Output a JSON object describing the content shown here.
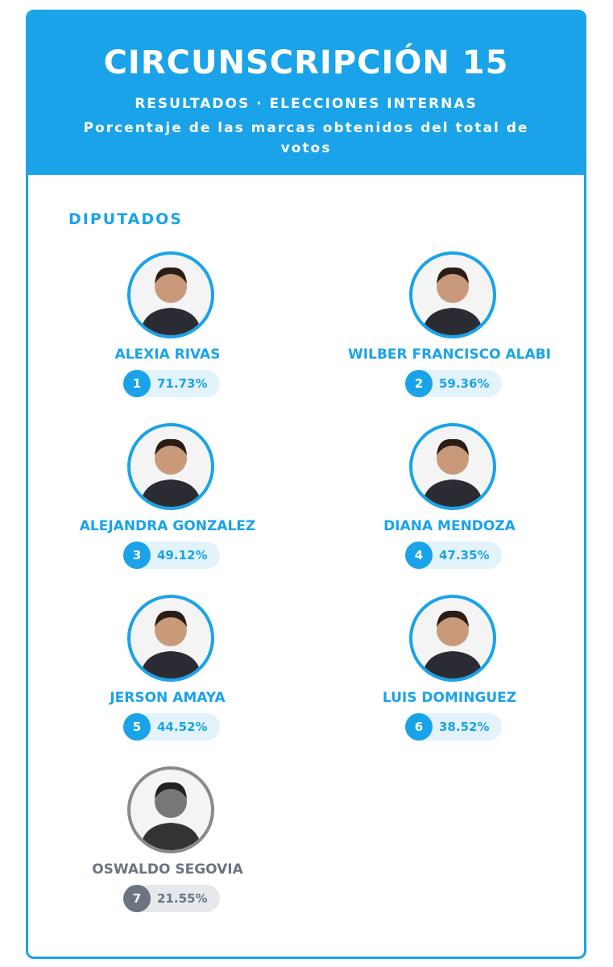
{
  "header": {
    "title": "CIRCUNSCRIPCIÓN 15",
    "subtitle": "RESULTADOS · ELECCIONES INTERNAS",
    "description": "Porcentaje de las marcas obtenidos del total de votos"
  },
  "section": "DIPUTADOS",
  "candidates": [
    {
      "rank": 1,
      "name": "ALEXIA RIVAS",
      "percent": "71.73%"
    },
    {
      "rank": 2,
      "name": "WILBER FRANCISCO ALABI",
      "percent": "59.36%"
    },
    {
      "rank": 3,
      "name": "ALEJANDRA GONZALEZ",
      "percent": "49.12%"
    },
    {
      "rank": 4,
      "name": "DIANA MENDOZA",
      "percent": "47.35%"
    },
    {
      "rank": 5,
      "name": "JERSON AMAYA",
      "percent": "44.52%"
    },
    {
      "rank": 6,
      "name": "LUIS DOMINGUEZ",
      "percent": "38.52%"
    },
    {
      "rank": 7,
      "name": "OSWALDO SEGOVIA",
      "percent": "21.55%"
    }
  ]
}
